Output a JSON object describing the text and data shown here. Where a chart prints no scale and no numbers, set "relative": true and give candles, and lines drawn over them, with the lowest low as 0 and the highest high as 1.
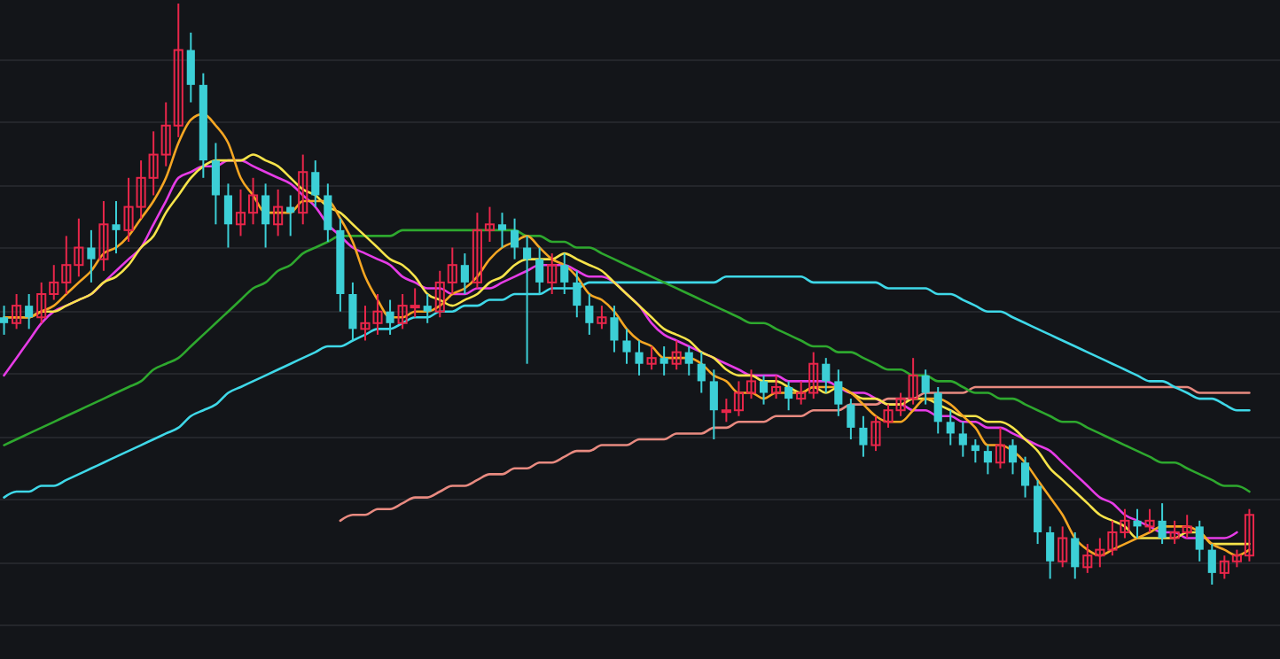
{
  "chart_data": {
    "type": "candlestick",
    "relative": true,
    "categories": [
      null,
      null,
      null,
      null,
      null,
      null,
      null,
      null,
      null,
      null,
      null,
      null,
      null,
      null,
      null,
      null,
      null,
      null,
      null,
      null,
      null,
      null,
      null,
      null,
      null,
      null,
      null,
      null,
      null,
      null,
      null,
      null,
      null,
      null,
      null,
      null,
      null,
      null,
      null,
      null,
      null,
      null,
      null,
      null,
      null,
      null,
      null,
      null,
      null,
      null,
      null,
      null,
      null,
      null,
      null,
      null,
      null,
      null,
      null,
      null,
      null,
      null,
      null,
      null,
      null,
      null,
      null,
      null,
      null,
      null,
      null,
      null,
      null,
      null,
      null,
      null,
      null,
      null,
      null,
      null,
      null,
      null,
      null,
      null,
      null,
      null,
      null,
      null,
      null,
      null,
      null,
      null,
      null,
      null,
      null,
      null,
      null,
      null,
      null,
      null,
      null
    ],
    "ohlc": [
      [
        0.46,
        0.48,
        0.43,
        0.45
      ],
      [
        0.45,
        0.5,
        0.44,
        0.48
      ],
      [
        0.48,
        0.5,
        0.44,
        0.46
      ],
      [
        0.46,
        0.52,
        0.45,
        0.5
      ],
      [
        0.5,
        0.55,
        0.49,
        0.52
      ],
      [
        0.52,
        0.6,
        0.5,
        0.55
      ],
      [
        0.55,
        0.63,
        0.53,
        0.58
      ],
      [
        0.58,
        0.61,
        0.52,
        0.56
      ],
      [
        0.56,
        0.66,
        0.54,
        0.62
      ],
      [
        0.62,
        0.66,
        0.57,
        0.61
      ],
      [
        0.61,
        0.7,
        0.59,
        0.65
      ],
      [
        0.65,
        0.73,
        0.63,
        0.7
      ],
      [
        0.7,
        0.78,
        0.67,
        0.74
      ],
      [
        0.74,
        0.83,
        0.72,
        0.79
      ],
      [
        0.79,
        1,
        0.77,
        0.92
      ],
      [
        0.92,
        0.95,
        0.83,
        0.86
      ],
      [
        0.86,
        0.88,
        0.7,
        0.73
      ],
      [
        0.73,
        0.76,
        0.62,
        0.67
      ],
      [
        0.67,
        0.69,
        0.58,
        0.62
      ],
      [
        0.62,
        0.68,
        0.6,
        0.64
      ],
      [
        0.64,
        0.7,
        0.62,
        0.67
      ],
      [
        0.67,
        0.69,
        0.58,
        0.62
      ],
      [
        0.62,
        0.68,
        0.6,
        0.65
      ],
      [
        0.65,
        0.67,
        0.6,
        0.64
      ],
      [
        0.64,
        0.74,
        0.62,
        0.71
      ],
      [
        0.71,
        0.73,
        0.65,
        0.67
      ],
      [
        0.67,
        0.69,
        0.59,
        0.61
      ],
      [
        0.61,
        0.63,
        0.47,
        0.5
      ],
      [
        0.5,
        0.52,
        0.42,
        0.44
      ],
      [
        0.44,
        0.48,
        0.42,
        0.45
      ],
      [
        0.45,
        0.5,
        0.43,
        0.47
      ],
      [
        0.47,
        0.49,
        0.43,
        0.45
      ],
      [
        0.45,
        0.5,
        0.44,
        0.48
      ],
      [
        0.48,
        0.51,
        0.46,
        0.48
      ],
      [
        0.48,
        0.5,
        0.45,
        0.47
      ],
      [
        0.47,
        0.54,
        0.46,
        0.52
      ],
      [
        0.52,
        0.58,
        0.5,
        0.55
      ],
      [
        0.55,
        0.57,
        0.5,
        0.52
      ],
      [
        0.52,
        0.64,
        0.51,
        0.61
      ],
      [
        0.61,
        0.65,
        0.59,
        0.62
      ],
      [
        0.62,
        0.64,
        0.58,
        0.61
      ],
      [
        0.61,
        0.63,
        0.56,
        0.58
      ],
      [
        0.58,
        0.6,
        0.38,
        0.56
      ],
      [
        0.56,
        0.58,
        0.5,
        0.52
      ],
      [
        0.52,
        0.57,
        0.5,
        0.55
      ],
      [
        0.55,
        0.57,
        0.5,
        0.52
      ],
      [
        0.52,
        0.54,
        0.46,
        0.48
      ],
      [
        0.48,
        0.5,
        0.43,
        0.45
      ],
      [
        0.45,
        0.48,
        0.44,
        0.46
      ],
      [
        0.46,
        0.48,
        0.4,
        0.42
      ],
      [
        0.42,
        0.44,
        0.38,
        0.4
      ],
      [
        0.4,
        0.42,
        0.36,
        0.38
      ],
      [
        0.38,
        0.41,
        0.37,
        0.39
      ],
      [
        0.39,
        0.41,
        0.36,
        0.38
      ],
      [
        0.38,
        0.42,
        0.37,
        0.4
      ],
      [
        0.4,
        0.41,
        0.36,
        0.38
      ],
      [
        0.38,
        0.4,
        0.33,
        0.35
      ],
      [
        0.35,
        0.37,
        0.25,
        0.3
      ],
      [
        0.3,
        0.32,
        0.28,
        0.3
      ],
      [
        0.3,
        0.35,
        0.29,
        0.33
      ],
      [
        0.33,
        0.37,
        0.32,
        0.35
      ],
      [
        0.35,
        0.36,
        0.31,
        0.33
      ],
      [
        0.33,
        0.36,
        0.32,
        0.34
      ],
      [
        0.34,
        0.35,
        0.3,
        0.32
      ],
      [
        0.32,
        0.35,
        0.31,
        0.33
      ],
      [
        0.33,
        0.4,
        0.32,
        0.38
      ],
      [
        0.38,
        0.39,
        0.33,
        0.35
      ],
      [
        0.35,
        0.37,
        0.29,
        0.31
      ],
      [
        0.31,
        0.32,
        0.25,
        0.27
      ],
      [
        0.27,
        0.29,
        0.22,
        0.24
      ],
      [
        0.24,
        0.29,
        0.23,
        0.28
      ],
      [
        0.28,
        0.31,
        0.27,
        0.3
      ],
      [
        0.3,
        0.33,
        0.29,
        0.32
      ],
      [
        0.32,
        0.39,
        0.31,
        0.36
      ],
      [
        0.36,
        0.37,
        0.31,
        0.33
      ],
      [
        0.33,
        0.34,
        0.26,
        0.28
      ],
      [
        0.28,
        0.3,
        0.24,
        0.26
      ],
      [
        0.26,
        0.28,
        0.22,
        0.24
      ],
      [
        0.24,
        0.25,
        0.21,
        0.23
      ],
      [
        0.23,
        0.24,
        0.19,
        0.21
      ],
      [
        0.21,
        0.27,
        0.2,
        0.24
      ],
      [
        0.24,
        0.25,
        0.19,
        0.21
      ],
      [
        0.21,
        0.22,
        0.15,
        0.17
      ],
      [
        0.17,
        0.18,
        0.07,
        0.09
      ],
      [
        0.09,
        0.1,
        0.01,
        0.04
      ],
      [
        0.04,
        0.1,
        0.03,
        0.08
      ],
      [
        0.08,
        0.09,
        0.01,
        0.03
      ],
      [
        0.03,
        0.07,
        0.02,
        0.05
      ],
      [
        0.05,
        0.08,
        0.03,
        0.06
      ],
      [
        0.06,
        0.11,
        0.05,
        0.09
      ],
      [
        0.09,
        0.13,
        0.08,
        0.11
      ],
      [
        0.11,
        0.13,
        0.08,
        0.1
      ],
      [
        0.1,
        0.13,
        0.09,
        0.11
      ],
      [
        0.11,
        0.14,
        0.07,
        0.08
      ],
      [
        0.08,
        0.11,
        0.07,
        0.09
      ],
      [
        0.09,
        0.12,
        0.08,
        0.1
      ],
      [
        0.1,
        0.11,
        0.04,
        0.06
      ],
      [
        0.06,
        0.07,
        0,
        0.02
      ],
      [
        0.02,
        0.05,
        0.01,
        0.04
      ],
      [
        0.04,
        0.06,
        0.03,
        0.05
      ],
      [
        0.05,
        0.13,
        0.04,
        0.12
      ]
    ],
    "series": [
      {
        "type": "line",
        "color": "#e88a80",
        "values": [
          null,
          null,
          null,
          null,
          null,
          null,
          null,
          null,
          null,
          null,
          null,
          null,
          null,
          null,
          null,
          null,
          null,
          null,
          null,
          null,
          null,
          null,
          null,
          null,
          null,
          null,
          null,
          0.11,
          0.12,
          0.12,
          0.13,
          0.13,
          0.14,
          0.15,
          0.15,
          0.16,
          0.17,
          0.17,
          0.18,
          0.19,
          0.19,
          0.2,
          0.2,
          0.21,
          0.21,
          0.22,
          0.23,
          0.23,
          0.24,
          0.24,
          0.24,
          0.25,
          0.25,
          0.25,
          0.26,
          0.26,
          0.26,
          0.27,
          0.27,
          0.28,
          0.28,
          0.28,
          0.29,
          0.29,
          0.29,
          0.3,
          0.3,
          0.3,
          0.31,
          0.31,
          0.31,
          0.32,
          0.32,
          0.32,
          0.33,
          0.33,
          0.33,
          0.33,
          0.34,
          0.34,
          0.34,
          0.34,
          0.34,
          0.34,
          0.34,
          0.34,
          0.34,
          0.34,
          0.34,
          0.34,
          0.34,
          0.34,
          0.34,
          0.34,
          0.34,
          0.34,
          0.33,
          0.33,
          0.33,
          0.33,
          0.33
        ]
      },
      {
        "type": "line",
        "color": "#3fd8e8",
        "values": [
          0.15,
          0.16,
          0.16,
          0.17,
          0.17,
          0.18,
          0.19,
          0.2,
          0.21,
          0.22,
          0.23,
          0.24,
          0.25,
          0.26,
          0.27,
          0.29,
          0.3,
          0.31,
          0.33,
          0.34,
          0.35,
          0.36,
          0.37,
          0.38,
          0.39,
          0.4,
          0.41,
          0.41,
          0.42,
          0.43,
          0.44,
          0.44,
          0.45,
          0.46,
          0.46,
          0.47,
          0.47,
          0.48,
          0.48,
          0.49,
          0.49,
          0.5,
          0.5,
          0.5,
          0.51,
          0.51,
          0.51,
          0.52,
          0.52,
          0.52,
          0.52,
          0.52,
          0.52,
          0.52,
          0.52,
          0.52,
          0.52,
          0.52,
          0.53,
          0.53,
          0.53,
          0.53,
          0.53,
          0.53,
          0.53,
          0.52,
          0.52,
          0.52,
          0.52,
          0.52,
          0.52,
          0.51,
          0.51,
          0.51,
          0.51,
          0.5,
          0.5,
          0.49,
          0.48,
          0.47,
          0.47,
          0.46,
          0.45,
          0.44,
          0.43,
          0.42,
          0.41,
          0.4,
          0.39,
          0.38,
          0.37,
          0.36,
          0.35,
          0.35,
          0.34,
          0.33,
          0.32,
          0.32,
          0.31,
          0.3,
          0.3
        ]
      },
      {
        "type": "line",
        "color": "#2ea82e",
        "values": [
          0.24,
          0.25,
          0.26,
          0.27,
          0.28,
          0.29,
          0.3,
          0.31,
          0.32,
          0.33,
          0.34,
          0.35,
          0.37,
          0.38,
          0.39,
          0.41,
          0.43,
          0.45,
          0.47,
          0.49,
          0.51,
          0.52,
          0.54,
          0.55,
          0.57,
          0.58,
          0.59,
          0.6,
          0.6,
          0.6,
          0.6,
          0.6,
          0.61,
          0.61,
          0.61,
          0.61,
          0.61,
          0.61,
          0.61,
          0.61,
          0.61,
          0.61,
          0.6,
          0.6,
          0.59,
          0.59,
          0.58,
          0.58,
          0.57,
          0.56,
          0.55,
          0.54,
          0.53,
          0.52,
          0.51,
          0.5,
          0.49,
          0.48,
          0.47,
          0.46,
          0.45,
          0.45,
          0.44,
          0.43,
          0.42,
          0.41,
          0.41,
          0.4,
          0.4,
          0.39,
          0.38,
          0.37,
          0.37,
          0.36,
          0.36,
          0.35,
          0.35,
          0.34,
          0.33,
          0.33,
          0.32,
          0.32,
          0.31,
          0.3,
          0.29,
          0.28,
          0.28,
          0.27,
          0.26,
          0.25,
          0.24,
          0.23,
          0.22,
          0.21,
          0.21,
          0.2,
          0.19,
          0.18,
          0.17,
          0.17,
          0.16
        ]
      },
      {
        "type": "line",
        "color": "#e63ce6",
        "values": [
          0.36,
          0.39,
          0.42,
          0.45,
          0.47,
          0.48,
          0.49,
          0.5,
          0.52,
          0.54,
          0.56,
          0.58,
          0.62,
          0.66,
          0.7,
          0.71,
          0.72,
          0.72,
          0.73,
          0.73,
          0.72,
          0.71,
          0.7,
          0.69,
          0.67,
          0.65,
          0.62,
          0.6,
          0.58,
          0.57,
          0.56,
          0.55,
          0.53,
          0.52,
          0.51,
          0.51,
          0.5,
          0.5,
          0.51,
          0.51,
          0.52,
          0.53,
          0.54,
          0.55,
          0.55,
          0.55,
          0.54,
          0.53,
          0.53,
          0.52,
          0.5,
          0.48,
          0.45,
          0.43,
          0.42,
          0.41,
          0.4,
          0.39,
          0.38,
          0.37,
          0.36,
          0.36,
          0.36,
          0.35,
          0.35,
          0.35,
          0.35,
          0.34,
          0.33,
          0.33,
          0.32,
          0.31,
          0.31,
          0.3,
          0.3,
          0.29,
          0.29,
          0.28,
          0.28,
          0.27,
          0.27,
          0.26,
          0.25,
          0.24,
          0.23,
          0.21,
          0.19,
          0.17,
          0.15,
          0.14,
          0.12,
          0.11,
          0.1,
          0.09,
          0.09,
          0.08,
          0.08,
          0.08,
          0.08,
          0.09,
          null
        ]
      },
      {
        "type": "line",
        "color": "#f6e34a",
        "values": [
          0.46,
          0.46,
          0.46,
          0.47,
          0.47,
          0.48,
          0.49,
          0.5,
          0.52,
          0.53,
          0.55,
          0.58,
          0.6,
          0.64,
          0.67,
          0.7,
          0.72,
          0.73,
          0.73,
          0.73,
          0.74,
          0.73,
          0.72,
          0.7,
          0.68,
          0.67,
          0.65,
          0.64,
          0.62,
          0.6,
          0.58,
          0.56,
          0.55,
          0.53,
          0.5,
          0.49,
          0.48,
          0.49,
          0.5,
          0.52,
          0.53,
          0.55,
          0.56,
          0.56,
          0.56,
          0.57,
          0.56,
          0.55,
          0.54,
          0.52,
          0.5,
          0.48,
          0.46,
          0.44,
          0.43,
          0.42,
          0.4,
          0.39,
          0.37,
          0.36,
          0.36,
          0.35,
          0.35,
          0.34,
          0.33,
          0.34,
          0.33,
          0.34,
          0.33,
          0.32,
          0.32,
          0.31,
          0.31,
          0.32,
          0.32,
          0.31,
          0.3,
          0.29,
          0.29,
          0.28,
          0.28,
          0.27,
          0.25,
          0.23,
          0.2,
          0.18,
          0.16,
          0.14,
          0.12,
          0.11,
          0.1,
          0.08,
          0.08,
          0.08,
          0.08,
          0.09,
          0.09,
          0.07,
          0.07,
          0.07,
          0.07
        ]
      },
      {
        "type": "line",
        "color": "#f5a623",
        "values": [
          0.46,
          0.46,
          0.46,
          0.47,
          0.48,
          0.5,
          0.52,
          0.54,
          0.57,
          0.58,
          0.6,
          0.63,
          0.66,
          0.7,
          0.76,
          0.8,
          0.81,
          0.79,
          0.76,
          0.7,
          0.67,
          0.64,
          0.64,
          0.64,
          0.66,
          0.66,
          0.66,
          0.63,
          0.59,
          0.53,
          0.49,
          0.46,
          0.46,
          0.47,
          0.47,
          0.48,
          0.5,
          0.51,
          0.53,
          0.56,
          0.58,
          0.59,
          0.6,
          0.58,
          0.56,
          0.55,
          0.53,
          0.5,
          0.49,
          0.47,
          0.44,
          0.42,
          0.41,
          0.39,
          0.39,
          0.39,
          0.38,
          0.36,
          0.35,
          0.33,
          0.33,
          0.32,
          0.33,
          0.33,
          0.33,
          0.34,
          0.34,
          0.34,
          0.33,
          0.31,
          0.29,
          0.28,
          0.28,
          0.3,
          0.32,
          0.32,
          0.31,
          0.29,
          0.27,
          0.24,
          0.24,
          0.23,
          0.21,
          0.18,
          0.15,
          0.12,
          0.08,
          0.06,
          0.05,
          0.06,
          0.07,
          0.08,
          0.09,
          0.1,
          0.1,
          0.1,
          0.09,
          0.07,
          0.06,
          0.05,
          0.06
        ]
      }
    ]
  }
}
